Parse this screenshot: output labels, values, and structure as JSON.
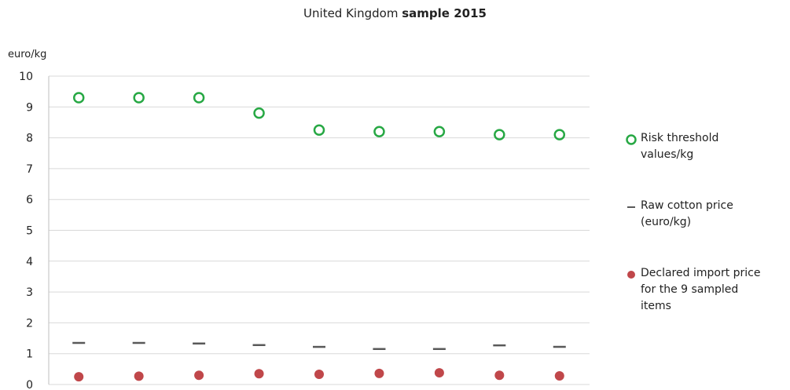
{
  "chart_data": {
    "type": "scatter",
    "title_main": "United Kingdom",
    "title_bold": "sample 2015",
    "ylabel": "euro/kg",
    "ylim": [
      0,
      10
    ],
    "yticks": [
      "0",
      "1",
      "2",
      "3",
      "4",
      "5",
      "6",
      "7",
      "8",
      "9",
      "10"
    ],
    "grid": true,
    "legend_position": "right",
    "series": [
      {
        "name_line1": "Risk threshold",
        "name_line2": "values/kg",
        "name_line3": "",
        "marker": "open-circle",
        "color": "#27a844",
        "values": [
          9.3,
          9.3,
          9.3,
          8.8,
          8.25,
          8.2,
          8.2,
          8.1,
          8.1
        ]
      },
      {
        "name_line1": "Raw cotton price",
        "name_line2": "(euro/kg)",
        "name_line3": "",
        "marker": "dash",
        "color": "#595959",
        "values": [
          1.35,
          1.35,
          1.33,
          1.28,
          1.22,
          1.15,
          1.15,
          1.27,
          1.22
        ]
      },
      {
        "name_line1": "Declared import price",
        "name_line2": "for the 9 sampled",
        "name_line3": "items",
        "marker": "filled-circle",
        "color": "#c0474a",
        "values": [
          0.25,
          0.27,
          0.3,
          0.35,
          0.33,
          0.36,
          0.38,
          0.3,
          0.28
        ]
      }
    ]
  }
}
